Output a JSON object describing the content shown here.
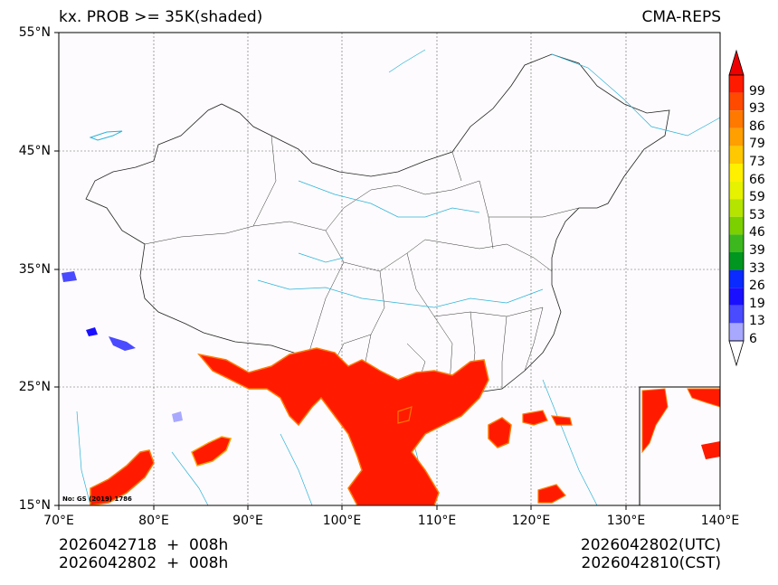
{
  "header": {
    "title": "kx. PROB >= 35K(shaded)",
    "model": "CMA-REPS"
  },
  "axes": {
    "lat_labels": [
      "55°N",
      "45°N",
      "35°N",
      "25°N",
      "15°N"
    ],
    "lat_values": [
      55,
      45,
      35,
      25,
      15
    ],
    "lon_labels": [
      "70°E",
      "80°E",
      "90°E",
      "100°E",
      "110°E",
      "120°E",
      "130°E",
      "140°E"
    ],
    "lon_values": [
      70,
      80,
      90,
      100,
      110,
      120,
      130,
      140
    ],
    "lat_range": [
      15,
      55
    ],
    "lon_range": [
      70,
      140
    ]
  },
  "colorbar": {
    "labels": [
      "99",
      "93",
      "86",
      "79",
      "73",
      "66",
      "59",
      "53",
      "46",
      "39",
      "33",
      "26",
      "19",
      "13",
      "6"
    ],
    "colors": [
      "#ff1a00",
      "#ff4a00",
      "#ff7800",
      "#ff9f00",
      "#ffc800",
      "#fff000",
      "#e6f200",
      "#b4e400",
      "#7cd000",
      "#3cb81e",
      "#009620",
      "#0a2aff",
      "#1a10ff",
      "#4a4aff",
      "#a8a8ff"
    ],
    "over_color": "#ee0000",
    "under_color": "#ffffff"
  },
  "footer": {
    "init_1": "2026042718  +  008h",
    "init_2": "2026042802  +  008h",
    "valid_utc": "2026042802(UTC)",
    "valid_cst": "2026042810(CST)"
  },
  "map_note": "No: GS (2019) 1786"
}
